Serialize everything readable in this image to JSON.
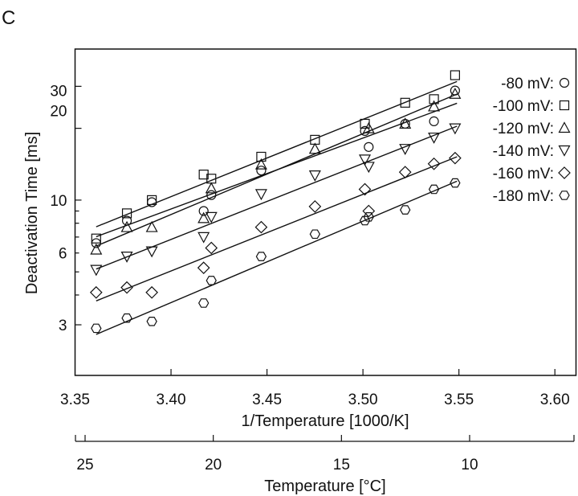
{
  "panel_label": "C",
  "chart_data": {
    "type": "scatter",
    "title": "",
    "xlabel": "1/Temperature  [1000/K]",
    "ylabel": "Deactivation Time [ms]",
    "yscale": "log",
    "xlim": [
      3.35,
      3.611
    ],
    "ylim": [
      1.84,
      43
    ],
    "xticks": [
      3.35,
      3.4,
      3.45,
      3.5,
      3.55,
      3.6
    ],
    "xtick_labels": [
      "3.35",
      "3.40",
      "3.45",
      "3.50",
      "3.55",
      "3.60"
    ],
    "yticks": [
      3,
      4,
      5,
      6,
      7,
      8,
      9,
      10,
      20,
      30
    ],
    "ytick_labels": [
      {
        "v": 3,
        "t": "3"
      },
      {
        "v": 6,
        "t": "6"
      },
      {
        "v": 10,
        "t": "10"
      },
      {
        "v": 20,
        "t": "20"
      },
      {
        "v": 30,
        "t": "30"
      }
    ],
    "secondary_xaxis": {
      "label": "Temperature [°C]",
      "label_main": "Temperature [",
      "label_sup": "o",
      "label_end": "C]",
      "ticks": [
        25,
        20,
        15,
        10
      ],
      "tick_labels": [
        "25",
        "20",
        "15",
        "10"
      ]
    },
    "legend_position": "top-right",
    "fit_lines": "linear fit of log(time) vs 1/T per series",
    "series": [
      {
        "name": "-80 mV:",
        "marker": "circle",
        "x": [
          3.361,
          3.377,
          3.39,
          3.417,
          3.421,
          3.447,
          3.501,
          3.503,
          3.522,
          3.537,
          3.548
        ],
        "y": [
          6.6,
          8.2,
          9.8,
          9.0,
          10.5,
          13.3,
          19.5,
          16.7,
          20.9,
          21.4,
          28.8
        ]
      },
      {
        "name": "-100 mV:",
        "marker": "square",
        "x": [
          3.361,
          3.377,
          3.39,
          3.417,
          3.421,
          3.447,
          3.475,
          3.501,
          3.522,
          3.537,
          3.548
        ],
        "y": [
          6.9,
          8.8,
          10.0,
          12.8,
          12.3,
          15.2,
          17.9,
          20.9,
          25.6,
          26.5,
          33.4
        ]
      },
      {
        "name": "-120 mV:",
        "marker": "triangle-up",
        "x": [
          3.361,
          3.377,
          3.39,
          3.417,
          3.421,
          3.447,
          3.475,
          3.503,
          3.522,
          3.537,
          3.548
        ],
        "y": [
          6.2,
          7.7,
          7.7,
          8.4,
          11.2,
          14.1,
          16.4,
          20.0,
          20.9,
          24.7,
          27.9
        ]
      },
      {
        "name": "-140 mV:",
        "marker": "triangle-down",
        "x": [
          3.361,
          3.377,
          3.39,
          3.417,
          3.421,
          3.447,
          3.475,
          3.501,
          3.503,
          3.522,
          3.537,
          3.548
        ],
        "y": [
          5.1,
          5.8,
          6.1,
          7.0,
          8.5,
          10.6,
          12.7,
          14.8,
          13.8,
          16.4,
          18.3,
          20.0
        ]
      },
      {
        "name": "-160 mV:",
        "marker": "diamond",
        "x": [
          3.361,
          3.377,
          3.39,
          3.417,
          3.421,
          3.447,
          3.475,
          3.501,
          3.503,
          3.522,
          3.537,
          3.548
        ],
        "y": [
          4.1,
          4.3,
          4.1,
          5.2,
          6.3,
          7.7,
          9.4,
          11.1,
          9.0,
          13.1,
          14.2,
          15.0
        ]
      },
      {
        "name": "-180 mV:",
        "marker": "hexagon",
        "x": [
          3.361,
          3.377,
          3.39,
          3.417,
          3.421,
          3.447,
          3.475,
          3.501,
          3.503,
          3.522,
          3.537,
          3.548
        ],
        "y": [
          2.9,
          3.2,
          3.1,
          3.7,
          4.6,
          5.8,
          7.2,
          8.2,
          8.5,
          9.1,
          11.1,
          11.8
        ]
      }
    ]
  }
}
